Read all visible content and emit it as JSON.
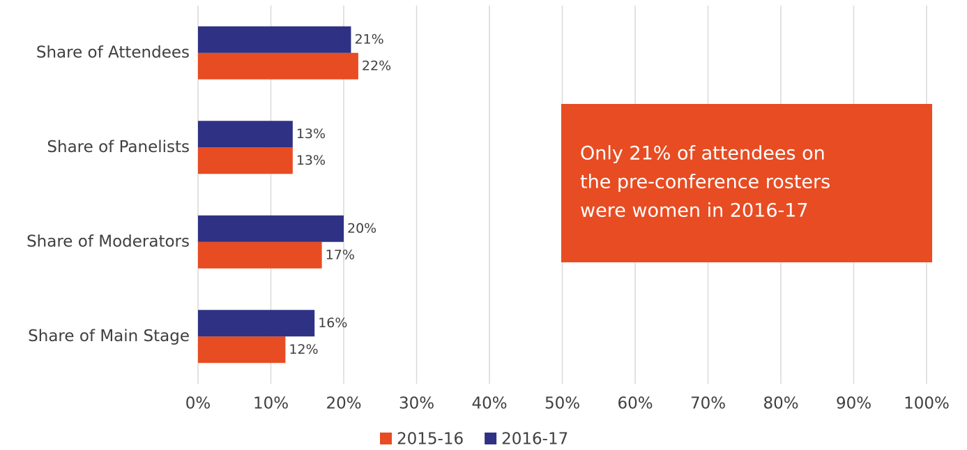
{
  "chart_data": {
    "type": "hbar",
    "categories": [
      "Share of Attendees",
      "Share of Panelists",
      "Share of Moderators",
      "Share of Main Stage"
    ],
    "series": [
      {
        "name": "2015-16",
        "color": "#e84c22",
        "values": [
          22,
          13,
          17,
          12
        ],
        "value_labels": [
          "22%",
          "13%",
          "17%",
          "12%"
        ]
      },
      {
        "name": "2016-17",
        "color": "#2e3184",
        "values": [
          21,
          13,
          20,
          16
        ],
        "value_labels": [
          "21%",
          "13%",
          "20%",
          "16%"
        ]
      }
    ],
    "xlim": [
      0,
      100
    ],
    "xticks": [
      {
        "value": 0,
        "label": "0%"
      },
      {
        "value": 10,
        "label": "10%"
      },
      {
        "value": 20,
        "label": "20%"
      },
      {
        "value": 30,
        "label": "30%"
      },
      {
        "value": 40,
        "label": "40%"
      },
      {
        "value": 50,
        "label": "50%"
      },
      {
        "value": 60,
        "label": "60%"
      },
      {
        "value": 70,
        "label": "70%"
      },
      {
        "value": 80,
        "label": "80%"
      },
      {
        "value": 90,
        "label": "90%"
      },
      {
        "value": 100,
        "label": "100%"
      }
    ],
    "grid": true,
    "legend": "bottom",
    "annotation": {
      "color": "#e84c22",
      "lines": [
        "Only 21% of attendees on",
        "the pre-conference rosters",
        "were women in 2016-17"
      ]
    }
  }
}
